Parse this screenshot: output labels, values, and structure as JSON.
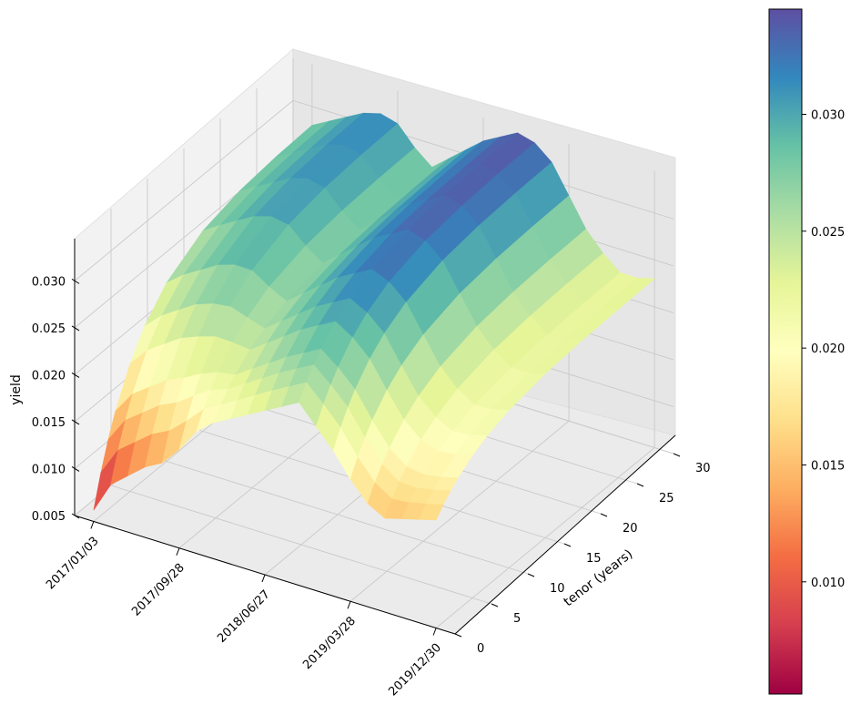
{
  "chart_data": {
    "type": "surface3d",
    "title": "",
    "xlabel": "",
    "ylabel": "tenor (years)",
    "zlabel": "yield",
    "x_tick_labels": [
      "2017/01/03",
      "2017/09/28",
      "2018/06/27",
      "2019/03/28",
      "2019/12/30"
    ],
    "y_ticks": [
      0,
      5,
      10,
      15,
      20,
      25,
      30
    ],
    "y_tick_labels": [
      "0",
      "5",
      "10",
      "15",
      "20",
      "25",
      "30"
    ],
    "z_ticks": [
      0.005,
      0.01,
      0.015,
      0.02,
      0.025,
      0.03
    ],
    "z_tick_labels": [
      "0.005",
      "0.010",
      "0.015",
      "0.020",
      "0.025",
      "0.030"
    ],
    "x_range_index": [
      0,
      1
    ],
    "y_range": [
      0,
      30
    ],
    "z_range": [
      0.005,
      0.0345
    ],
    "colormap": "Spectral",
    "colorbar": {
      "min": 0.0052,
      "max": 0.0345,
      "ticks": [
        0.01,
        0.015,
        0.02,
        0.025,
        0.03
      ],
      "tick_labels": [
        "0.010",
        "0.015",
        "0.020",
        "0.025",
        "0.030"
      ]
    },
    "tenors": [
      0,
      1,
      2,
      3,
      5,
      7,
      10,
      15,
      20,
      25,
      30
    ],
    "dates_index": [
      0,
      0.05,
      0.1,
      0.15,
      0.2,
      0.25,
      0.3,
      0.35,
      0.4,
      0.45,
      0.5,
      0.55,
      0.6,
      0.65,
      0.7,
      0.75,
      0.8,
      0.85,
      0.9,
      0.95,
      1.0
    ],
    "yield_short_end": [
      0.0062,
      0.0095,
      0.011,
      0.0125,
      0.0135,
      0.0155,
      0.018,
      0.0195,
      0.0205,
      0.0215,
      0.0225,
      0.0235,
      0.0245,
      0.0225,
      0.0205,
      0.018,
      0.016,
      0.015,
      0.0155,
      0.016,
      0.0165
    ],
    "yield_long_end": [
      0.028,
      0.029,
      0.03,
      0.031,
      0.0315,
      0.031,
      0.029,
      0.0275,
      0.029,
      0.0305,
      0.032,
      0.033,
      0.034,
      0.0335,
      0.032,
      0.029,
      0.026,
      0.024,
      0.0225,
      0.0225,
      0.023
    ]
  }
}
